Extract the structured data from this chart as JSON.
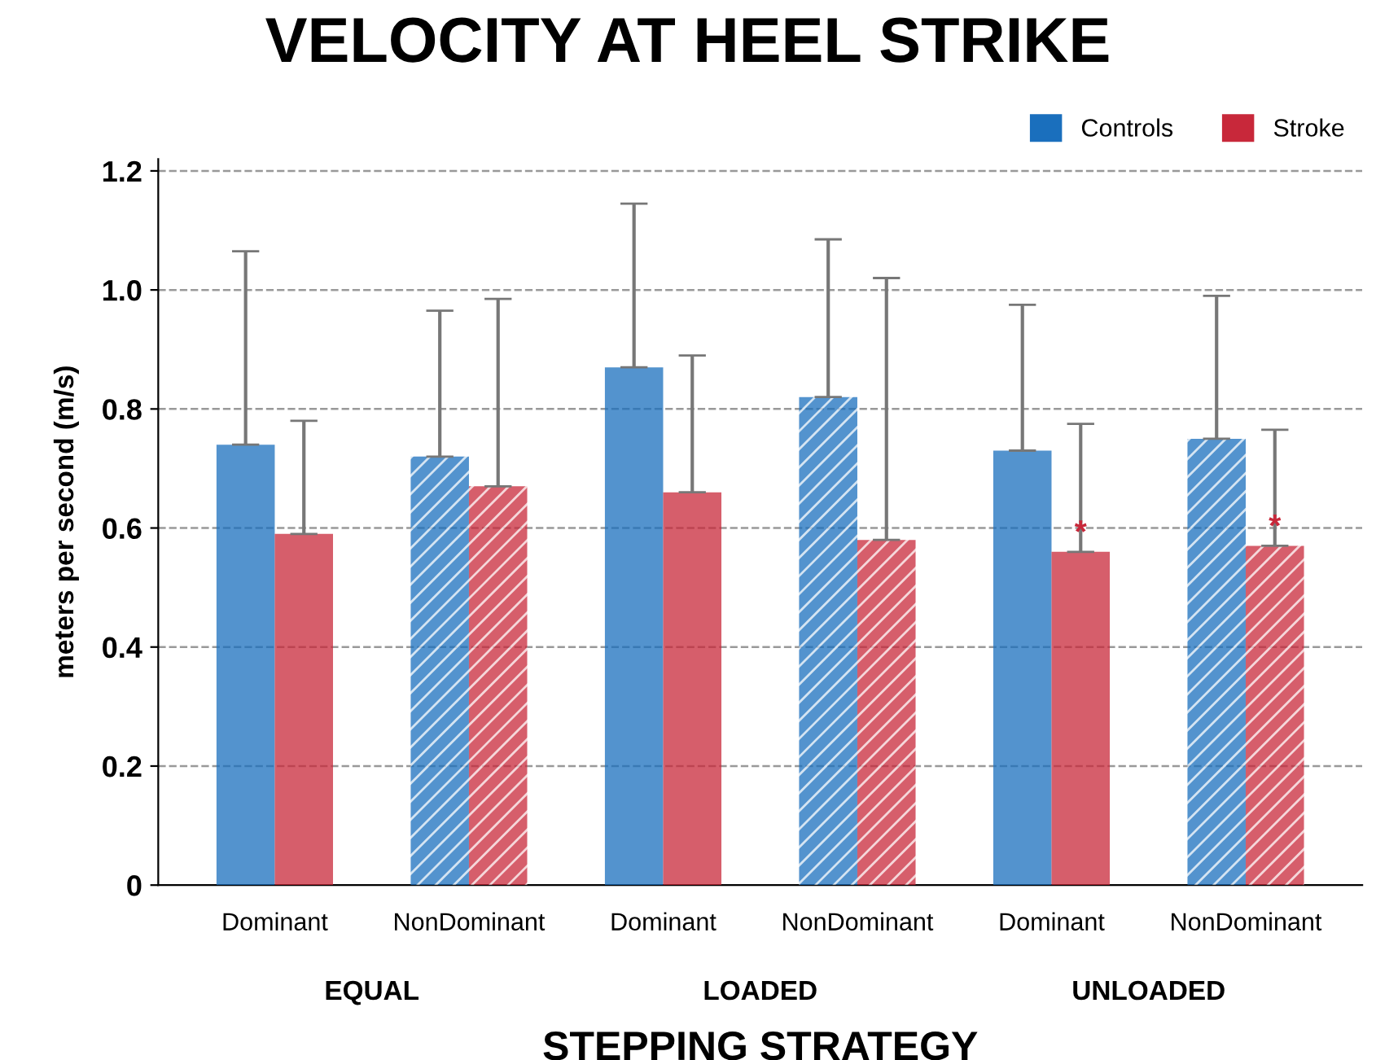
{
  "chart_data": {
    "type": "bar",
    "title": "VELOCITY AT HEEL STRIKE",
    "xlabel": "STEPPING STRATEGY",
    "ylabel": "meters per second (m/s)",
    "categories": [
      "Dominant",
      "NonDominant",
      "Dominant",
      "NonDominant",
      "Dominant",
      "NonDominant"
    ],
    "annotations": [
      "EQUAL",
      "LOADED",
      "UNLOADED"
    ],
    "series": [
      {
        "name": "Controls",
        "color": "#1a6fbd",
        "values": [
          0.74,
          0.72,
          0.87,
          0.82,
          0.73,
          0.75
        ],
        "errors": [
          [
            0.74,
            1.065
          ],
          [
            0.72,
            0.965
          ],
          [
            0.87,
            1.145
          ],
          [
            0.82,
            1.085
          ],
          [
            0.73,
            0.975
          ],
          [
            0.75,
            0.99
          ]
        ]
      },
      {
        "name": "Stroke",
        "color": "#c8283a",
        "values": [
          0.59,
          0.67,
          0.66,
          0.58,
          0.56,
          0.57
        ],
        "errors": [
          [
            0.59,
            0.78
          ],
          [
            0.67,
            0.985
          ],
          [
            0.66,
            0.89
          ],
          [
            0.58,
            1.02
          ],
          [
            0.56,
            0.775
          ],
          [
            0.57,
            0.765
          ]
        ],
        "value_labels": [
          null,
          null,
          null,
          null,
          "*",
          "*"
        ]
      }
    ],
    "ylim": [
      0,
      1.22
    ],
    "yticks": [
      0,
      0.2,
      0.4,
      0.6,
      0.8,
      {
        "value": 1,
        "label": "1.0"
      },
      1.2
    ],
    "grid": "y",
    "legend": "top right"
  }
}
